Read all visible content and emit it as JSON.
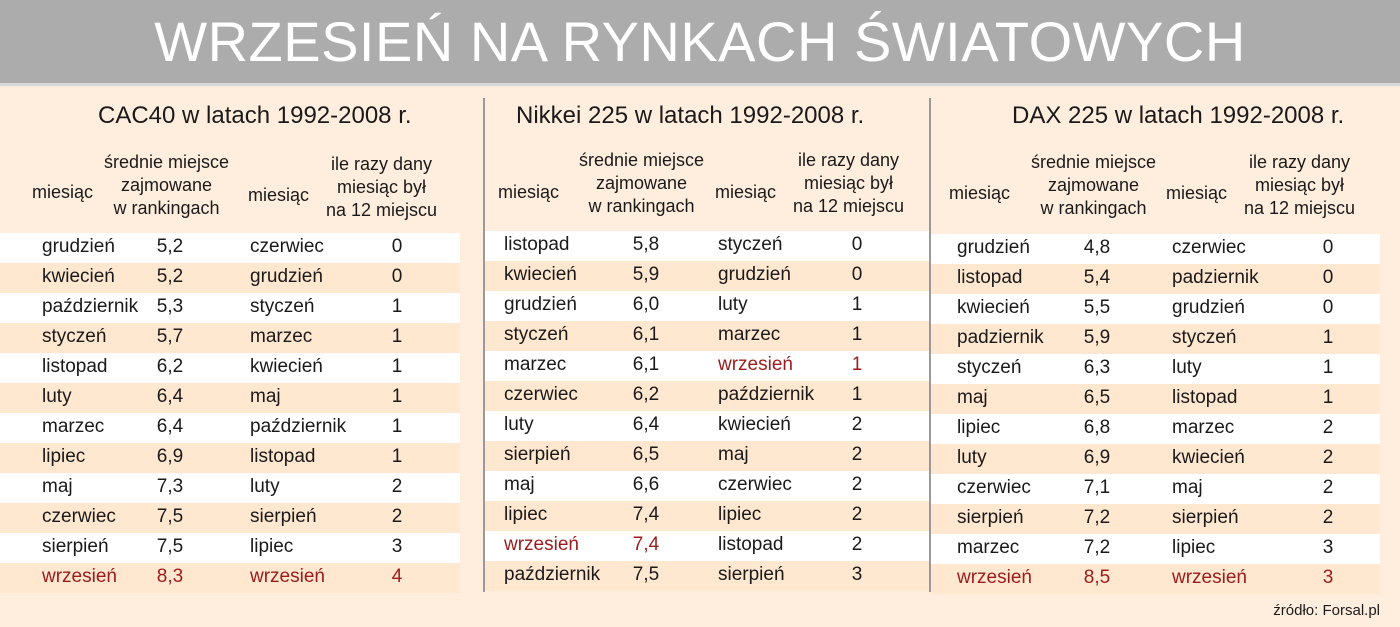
{
  "title": "WRZESIEŃ NA RYNKACH ŚWIATOWYCH",
  "source": "źródło: Forsal.pl",
  "headers": {
    "month": "miesiąc",
    "avg_place": [
      "średnie miejsce",
      "zajmowane",
      "w rankingach"
    ],
    "times": [
      "ile razy dany",
      "miesiąc był",
      "na 12 miejscu"
    ]
  },
  "panels": [
    {
      "title": "CAC40 w latach 1992-2008 r.",
      "left": [
        {
          "month": "grudzień",
          "value": "5,2"
        },
        {
          "month": "kwiecień",
          "value": "5,2"
        },
        {
          "month": "październik",
          "value": "5,3"
        },
        {
          "month": "styczeń",
          "value": "5,7"
        },
        {
          "month": "listopad",
          "value": "6,2"
        },
        {
          "month": "luty",
          "value": "6,4"
        },
        {
          "month": "marzec",
          "value": "6,4"
        },
        {
          "month": "lipiec",
          "value": "6,9"
        },
        {
          "month": "maj",
          "value": "7,3"
        },
        {
          "month": "czerwiec",
          "value": "7,5"
        },
        {
          "month": "sierpień",
          "value": "7,5"
        },
        {
          "month": "wrzesień",
          "value": "8,3"
        }
      ],
      "right": [
        {
          "month": "czerwiec",
          "value": "0"
        },
        {
          "month": "grudzień",
          "value": "0"
        },
        {
          "month": "styczeń",
          "value": "1"
        },
        {
          "month": "marzec",
          "value": "1"
        },
        {
          "month": "kwiecień",
          "value": "1"
        },
        {
          "month": "maj",
          "value": "1"
        },
        {
          "month": "październik",
          "value": "1"
        },
        {
          "month": "listopad",
          "value": "1"
        },
        {
          "month": "luty",
          "value": "2"
        },
        {
          "month": "sierpień",
          "value": "2"
        },
        {
          "month": "lipiec",
          "value": "3"
        },
        {
          "month": "wrzesień",
          "value": "4"
        }
      ]
    },
    {
      "title": "Nikkei 225 w latach 1992-2008 r.",
      "left": [
        {
          "month": "listopad",
          "value": "5,8"
        },
        {
          "month": "kwiecień",
          "value": "5,9"
        },
        {
          "month": "grudzień",
          "value": "6,0"
        },
        {
          "month": "styczeń",
          "value": "6,1"
        },
        {
          "month": "marzec",
          "value": "6,1"
        },
        {
          "month": "czerwiec",
          "value": "6,2"
        },
        {
          "month": "luty",
          "value": "6,4"
        },
        {
          "month": "sierpień",
          "value": "6,5"
        },
        {
          "month": "maj",
          "value": "6,6"
        },
        {
          "month": "lipiec",
          "value": "7,4"
        },
        {
          "month": "wrzesień",
          "value": "7,4"
        },
        {
          "month": "październik",
          "value": "7,5"
        }
      ],
      "right": [
        {
          "month": "styczeń",
          "value": "0"
        },
        {
          "month": "grudzień",
          "value": "0"
        },
        {
          "month": "luty",
          "value": "1"
        },
        {
          "month": "marzec",
          "value": "1"
        },
        {
          "month": "wrzesień",
          "value": "1"
        },
        {
          "month": "październik",
          "value": "1"
        },
        {
          "month": "kwiecień",
          "value": "2"
        },
        {
          "month": "maj",
          "value": "2"
        },
        {
          "month": "czerwiec",
          "value": "2"
        },
        {
          "month": "lipiec",
          "value": "2"
        },
        {
          "month": "listopad",
          "value": "2"
        },
        {
          "month": "sierpień",
          "value": "3"
        }
      ]
    },
    {
      "title": "DAX 225 w latach 1992-2008 r.",
      "left": [
        {
          "month": "grudzień",
          "value": "4,8"
        },
        {
          "month": "listopad",
          "value": "5,4"
        },
        {
          "month": "kwiecień",
          "value": "5,5"
        },
        {
          "month": "padziernik",
          "value": "5,9"
        },
        {
          "month": "styczeń",
          "value": "6,3"
        },
        {
          "month": "maj",
          "value": "6,5"
        },
        {
          "month": "lipiec",
          "value": "6,8"
        },
        {
          "month": "luty",
          "value": "6,9"
        },
        {
          "month": "czerwiec",
          "value": "7,1"
        },
        {
          "month": "sierpień",
          "value": "7,2"
        },
        {
          "month": "marzec",
          "value": "7,2"
        },
        {
          "month": "wrzesień",
          "value": "8,5"
        }
      ],
      "right": [
        {
          "month": "czerwiec",
          "value": "0"
        },
        {
          "month": "padziernik",
          "value": "0"
        },
        {
          "month": "grudzień",
          "value": "0"
        },
        {
          "month": "styczeń",
          "value": "1"
        },
        {
          "month": "luty",
          "value": "1"
        },
        {
          "month": "listopad",
          "value": "1"
        },
        {
          "month": "marzec",
          "value": "2"
        },
        {
          "month": "kwiecień",
          "value": "2"
        },
        {
          "month": "maj",
          "value": "2"
        },
        {
          "month": "sierpień",
          "value": "2"
        },
        {
          "month": "lipiec",
          "value": "3"
        },
        {
          "month": "wrzesień",
          "value": "3"
        }
      ]
    }
  ],
  "highlight_month": "wrzesień",
  "colors": {
    "background": "#ffeedd",
    "title_bar": "#acacac",
    "highlight": "#9b1c1c"
  }
}
